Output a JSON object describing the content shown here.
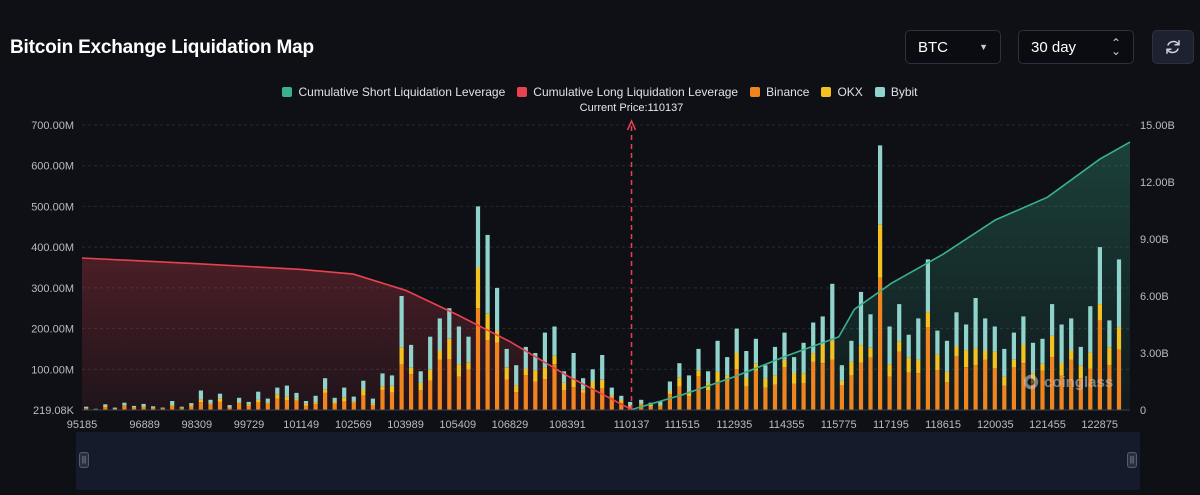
{
  "header": {
    "title": "Bitcoin Exchange Liquidation Map",
    "coin_select": "BTC",
    "range_select": "30 day"
  },
  "icons": {
    "coin_caret": "caret-down-icon",
    "range_caret": "sort-updown-icon",
    "refresh": "refresh-icon",
    "scroll_handle": "drag-handle-icon",
    "watermark": "coinglass-logo"
  },
  "watermark": "coinglass",
  "colors": {
    "background": "#0e1016",
    "short_line": "#3bb08f",
    "long_line": "#e8424f",
    "binance": "#f0841e",
    "okx": "#f3c221",
    "bybit": "#8fd3cc",
    "current_price": "#e8424f"
  },
  "chart_data": {
    "type": "bar",
    "title": "Bitcoin Exchange Liquidation Map",
    "current_price_label": "Current Price:110137",
    "current_price": 110137,
    "x_tick_labels": [
      "95185",
      "96889",
      "98309",
      "99729",
      "101149",
      "102569",
      "103989",
      "105409",
      "106829",
      "108391",
      "110137",
      "111515",
      "112935",
      "114355",
      "115775",
      "117195",
      "118615",
      "120035",
      "121455",
      "122875"
    ],
    "xlim": [
      95185,
      123700
    ],
    "left_axis": {
      "tick_labels": [
        "219.08K",
        "100.00M",
        "200.00M",
        "300.00M",
        "400.00M",
        "500.00M",
        "600.00M",
        "700.00M"
      ],
      "ylim": [
        0,
        700
      ]
    },
    "right_axis": {
      "tick_labels": [
        "0",
        "3.00B",
        "6.00B",
        "9.00B",
        "12.00B",
        "15.00B"
      ],
      "ylim": [
        0,
        15
      ]
    },
    "legend": [
      {
        "name": "Cumulative Short Liquidation Leverage",
        "color": "#3bb08f"
      },
      {
        "name": "Cumulative Long Liquidation Leverage",
        "color": "#e8424f"
      },
      {
        "name": "Binance",
        "color": "#f0841e"
      },
      {
        "name": "OKX",
        "color": "#f3c221"
      },
      {
        "name": "Bybit",
        "color": "#8fd3cc"
      }
    ],
    "bar_totals_millions": [
      [
        95300,
        8
      ],
      [
        95560,
        3
      ],
      [
        95820,
        14
      ],
      [
        96080,
        6
      ],
      [
        96340,
        18
      ],
      [
        96600,
        10
      ],
      [
        96860,
        15
      ],
      [
        97120,
        9
      ],
      [
        97380,
        6
      ],
      [
        97640,
        22
      ],
      [
        97900,
        8
      ],
      [
        98160,
        17
      ],
      [
        98420,
        48
      ],
      [
        98680,
        25
      ],
      [
        98940,
        40
      ],
      [
        99200,
        12
      ],
      [
        99460,
        30
      ],
      [
        99720,
        20
      ],
      [
        99980,
        45
      ],
      [
        100240,
        28
      ],
      [
        100500,
        55
      ],
      [
        100760,
        60
      ],
      [
        101020,
        42
      ],
      [
        101280,
        22
      ],
      [
        101540,
        35
      ],
      [
        101800,
        78
      ],
      [
        102060,
        30
      ],
      [
        102320,
        55
      ],
      [
        102580,
        33
      ],
      [
        102840,
        72
      ],
      [
        103100,
        28
      ],
      [
        103360,
        90
      ],
      [
        103620,
        85
      ],
      [
        103880,
        280
      ],
      [
        104140,
        160
      ],
      [
        104400,
        95
      ],
      [
        104660,
        180
      ],
      [
        104920,
        225
      ],
      [
        105180,
        250
      ],
      [
        105440,
        205
      ],
      [
        105700,
        180
      ],
      [
        105960,
        500
      ],
      [
        106220,
        430
      ],
      [
        106480,
        300
      ],
      [
        106740,
        150
      ],
      [
        107000,
        110
      ],
      [
        107260,
        155
      ],
      [
        107520,
        140
      ],
      [
        107780,
        190
      ],
      [
        108040,
        205
      ],
      [
        108300,
        95
      ],
      [
        108560,
        140
      ],
      [
        108820,
        78
      ],
      [
        109080,
        100
      ],
      [
        109340,
        135
      ],
      [
        109600,
        55
      ],
      [
        109860,
        35
      ],
      [
        110100,
        20
      ],
      [
        110400,
        25
      ],
      [
        110660,
        18
      ],
      [
        110920,
        22
      ],
      [
        111180,
        70
      ],
      [
        111440,
        115
      ],
      [
        111700,
        85
      ],
      [
        111960,
        150
      ],
      [
        112220,
        95
      ],
      [
        112480,
        170
      ],
      [
        112740,
        130
      ],
      [
        113000,
        200
      ],
      [
        113260,
        145
      ],
      [
        113520,
        175
      ],
      [
        113780,
        110
      ],
      [
        114040,
        155
      ],
      [
        114300,
        190
      ],
      [
        114560,
        130
      ],
      [
        114820,
        165
      ],
      [
        115080,
        215
      ],
      [
        115340,
        230
      ],
      [
        115600,
        310
      ],
      [
        115860,
        110
      ],
      [
        116120,
        170
      ],
      [
        116380,
        290
      ],
      [
        116640,
        235
      ],
      [
        116900,
        650
      ],
      [
        117160,
        205
      ],
      [
        117420,
        260
      ],
      [
        117680,
        185
      ],
      [
        117940,
        225
      ],
      [
        118200,
        370
      ],
      [
        118460,
        195
      ],
      [
        118720,
        170
      ],
      [
        118980,
        240
      ],
      [
        119240,
        210
      ],
      [
        119500,
        275
      ],
      [
        119760,
        225
      ],
      [
        120020,
        205
      ],
      [
        120280,
        150
      ],
      [
        120540,
        190
      ],
      [
        120800,
        230
      ],
      [
        121060,
        165
      ],
      [
        121320,
        175
      ],
      [
        121580,
        260
      ],
      [
        121840,
        210
      ],
      [
        122100,
        225
      ],
      [
        122360,
        155
      ],
      [
        122620,
        255
      ],
      [
        122880,
        400
      ],
      [
        123140,
        220
      ],
      [
        123400,
        370
      ]
    ],
    "bybit_share": [
      0.45,
      0.35,
      0.3
    ],
    "okx_share": [
      0.15,
      0.1,
      0.2
    ],
    "long_cumulative": [
      [
        95185,
        8.0
      ],
      [
        98309,
        7.7
      ],
      [
        101149,
        7.4
      ],
      [
        102569,
        7.15
      ],
      [
        103989,
        6.3
      ],
      [
        105409,
        5.0
      ],
      [
        106829,
        3.6
      ],
      [
        108391,
        1.8
      ],
      [
        110137,
        0.02
      ]
    ],
    "short_cumulative": [
      [
        110137,
        0.02
      ],
      [
        111515,
        0.8
      ],
      [
        112935,
        1.75
      ],
      [
        114355,
        2.85
      ],
      [
        115775,
        3.85
      ],
      [
        116200,
        5.3
      ],
      [
        117195,
        6.65
      ],
      [
        118615,
        8.2
      ],
      [
        120035,
        10.0
      ],
      [
        121455,
        11.2
      ],
      [
        122875,
        13.2
      ],
      [
        123700,
        14.1
      ]
    ]
  }
}
